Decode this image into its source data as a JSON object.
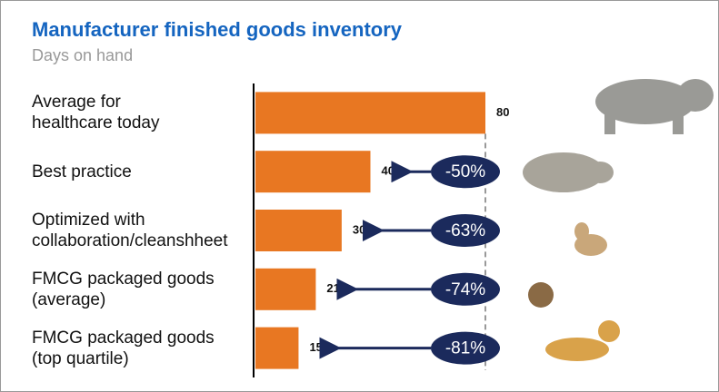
{
  "chart_data": {
    "type": "bar",
    "orientation": "horizontal",
    "title": "Manufacturer finished goods inventory",
    "subtitle": "Days on hand",
    "categories": [
      "Average for\nhealthcare today",
      "Best practice",
      "Optimized with\ncollaboration/cleanshheet",
      "FMCG packaged goods\n(average)",
      "FMCG packaged goods\n(top quartile)"
    ],
    "values": [
      80,
      40,
      30,
      21,
      15
    ],
    "reductions": [
      null,
      "-50%",
      "-63%",
      "-74%",
      "-81%"
    ],
    "color": "#e87722",
    "xlim": [
      0,
      80
    ]
  }
}
